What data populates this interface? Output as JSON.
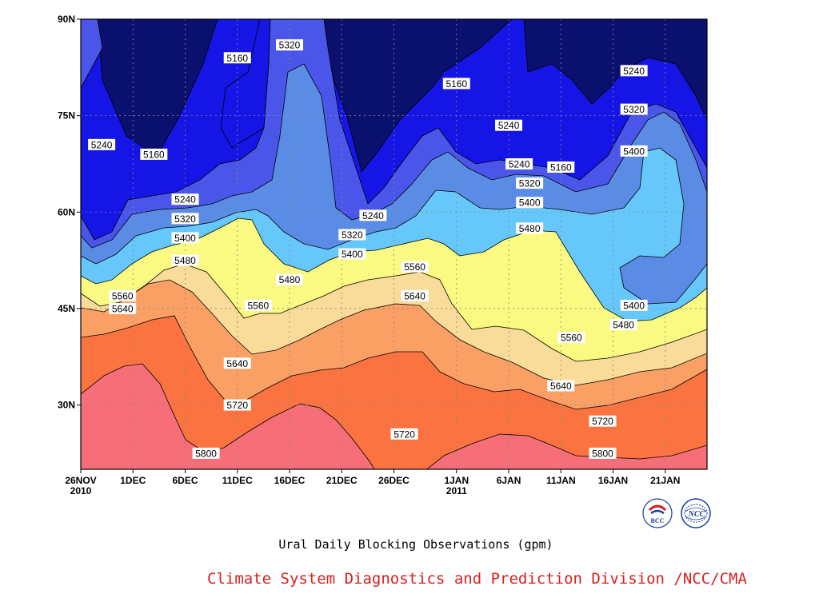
{
  "chart_data": {
    "type": "contour",
    "caption": "Ural Daily Blocking Observations (gpm)",
    "variable_unit": "gpm",
    "x_ticks": [
      {
        "date": "2010-11-26",
        "label": "26NOV",
        "sublabel": "2010"
      },
      {
        "date": "2010-12-01",
        "label": "1DEC",
        "sublabel": ""
      },
      {
        "date": "2010-12-06",
        "label": "6DEC",
        "sublabel": ""
      },
      {
        "date": "2010-12-11",
        "label": "11DEC",
        "sublabel": ""
      },
      {
        "date": "2010-12-16",
        "label": "16DEC",
        "sublabel": ""
      },
      {
        "date": "2010-12-21",
        "label": "21DEC",
        "sublabel": ""
      },
      {
        "date": "2010-12-26",
        "label": "26DEC",
        "sublabel": ""
      },
      {
        "date": "2011-01-01",
        "label": "1JAN",
        "sublabel": "2011"
      },
      {
        "date": "2011-01-06",
        "label": "6JAN",
        "sublabel": ""
      },
      {
        "date": "2011-01-11",
        "label": "11JAN",
        "sublabel": ""
      },
      {
        "date": "2011-01-16",
        "label": "16JAN",
        "sublabel": ""
      },
      {
        "date": "2011-01-21",
        "label": "21JAN",
        "sublabel": ""
      }
    ],
    "xlim": [
      "2010-11-26",
      "2011-01-25"
    ],
    "y_ticks": [
      {
        "lat": 30,
        "label": "30N"
      },
      {
        "lat": 45,
        "label": "45N"
      },
      {
        "lat": 60,
        "label": "60N"
      },
      {
        "lat": 75,
        "label": "75N"
      },
      {
        "lat": 90,
        "label": "90N"
      }
    ],
    "ylim": [
      20,
      90
    ],
    "grid": true,
    "levels": [
      5160,
      5240,
      5320,
      5400,
      5480,
      5560,
      5640,
      5720,
      5800
    ],
    "fill_colors": {
      "below_5160": "#0a106e",
      "5160_5240": "#1515e6",
      "5240_5320": "#4a56ea",
      "5320_5400": "#5a8ce6",
      "5400_5480": "#66c8fa",
      "5480_5560": "#fafa82",
      "5560_5640": "#fadc9a",
      "5640_5720": "#faa064",
      "5720_5800": "#fa7340",
      "above_5800": "#f56e78"
    },
    "contour_labels": [
      {
        "level": 5240,
        "date": "2010-11-28",
        "lat": 70.5
      },
      {
        "level": 5160,
        "date": "2010-12-03",
        "lat": 69.0
      },
      {
        "level": 5160,
        "date": "2010-12-11",
        "lat": 84.0
      },
      {
        "level": 5320,
        "date": "2010-12-16",
        "lat": 86.0
      },
      {
        "level": 5240,
        "date": "2010-12-06",
        "lat": 62.0
      },
      {
        "level": 5320,
        "date": "2010-12-06",
        "lat": 59.0
      },
      {
        "level": 5400,
        "date": "2010-12-06",
        "lat": 56.0
      },
      {
        "level": 5480,
        "date": "2010-12-06",
        "lat": 52.5
      },
      {
        "level": 5560,
        "date": "2010-11-30",
        "lat": 47.0
      },
      {
        "level": 5640,
        "date": "2010-11-30",
        "lat": 45.0
      },
      {
        "level": 5560,
        "date": "2010-12-13",
        "lat": 45.5
      },
      {
        "level": 5640,
        "date": "2010-12-11",
        "lat": 36.5
      },
      {
        "level": 5720,
        "date": "2010-12-11",
        "lat": 30.0
      },
      {
        "level": 5800,
        "date": "2010-12-08",
        "lat": 22.5
      },
      {
        "level": 5480,
        "date": "2010-12-16",
        "lat": 49.5
      },
      {
        "level": 5240,
        "date": "2010-12-24",
        "lat": 59.5
      },
      {
        "level": 5320,
        "date": "2010-12-22",
        "lat": 56.5
      },
      {
        "level": 5400,
        "date": "2010-12-22",
        "lat": 53.5
      },
      {
        "level": 5560,
        "date": "2010-12-28",
        "lat": 51.5
      },
      {
        "level": 5640,
        "date": "2010-12-28",
        "lat": 47.0
      },
      {
        "level": 5720,
        "date": "2010-12-27",
        "lat": 25.5
      },
      {
        "level": 5160,
        "date": "2011-01-01",
        "lat": 80.0
      },
      {
        "level": 5240,
        "date": "2011-01-06",
        "lat": 73.5
      },
      {
        "level": 5240,
        "date": "2011-01-07",
        "lat": 67.5
      },
      {
        "level": 5320,
        "date": "2011-01-08",
        "lat": 64.5
      },
      {
        "level": 5400,
        "date": "2011-01-08",
        "lat": 61.5
      },
      {
        "level": 5480,
        "date": "2011-01-08",
        "lat": 57.5
      },
      {
        "level": 5160,
        "date": "2011-01-11",
        "lat": 67.0
      },
      {
        "level": 5240,
        "date": "2011-01-18",
        "lat": 82.0
      },
      {
        "level": 5320,
        "date": "2011-01-18",
        "lat": 76.0
      },
      {
        "level": 5400,
        "date": "2011-01-18",
        "lat": 69.5
      },
      {
        "level": 5560,
        "date": "2011-01-12",
        "lat": 40.5
      },
      {
        "level": 5400,
        "date": "2011-01-18",
        "lat": 45.5
      },
      {
        "level": 5480,
        "date": "2011-01-17",
        "lat": 42.5
      },
      {
        "level": 5640,
        "date": "2011-01-11",
        "lat": 33.0
      },
      {
        "level": 5720,
        "date": "2011-01-15",
        "lat": 27.5
      },
      {
        "level": 5800,
        "date": "2011-01-15",
        "lat": 22.5
      }
    ]
  },
  "footer": {
    "caption": "Ural Daily Blocking Observations (gpm)",
    "credit": "Climate System Diagnostics and Prediction Division /NCC/CMA",
    "credit_color": "#d62020"
  },
  "logos": [
    {
      "icon": "bcc-logo-icon",
      "text": "BCC"
    },
    {
      "icon": "ncc-logo-icon",
      "text": "NCC"
    }
  ]
}
